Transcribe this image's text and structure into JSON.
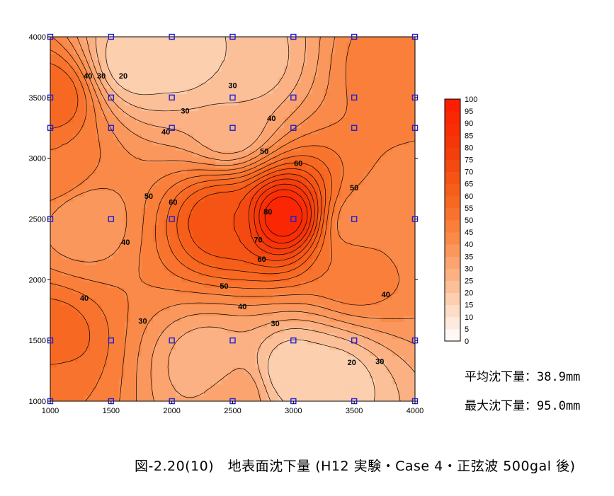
{
  "chart_data": {
    "type": "heatmap",
    "subtype": "filled-contour",
    "title": "",
    "xlabel": "",
    "ylabel": "",
    "xlim": [
      1000,
      4000
    ],
    "ylim": [
      1000,
      4000
    ],
    "x_ticks": [
      1000,
      1500,
      2000,
      2500,
      3000,
      3500,
      4000
    ],
    "y_ticks": [
      1000,
      1500,
      2000,
      2500,
      3000,
      3500,
      4000
    ],
    "x_tick_labels": [
      "1000",
      "1500",
      "2000",
      "2500",
      "3000",
      "3500",
      "4000"
    ],
    "y_tick_labels": [
      "1000",
      "1500",
      "2000",
      "2500",
      "3000",
      "3500",
      "4000"
    ],
    "contour_step": 5,
    "color_range": [
      0,
      100
    ],
    "color_low": "#ffffff",
    "color_high": "#ff1a00",
    "colorbar_labels": [
      "100",
      "95",
      "90",
      "85",
      "80",
      "75",
      "70",
      "65",
      "60",
      "55",
      "50",
      "45",
      "40",
      "35",
      "30",
      "25",
      "20",
      "15",
      "10",
      "5",
      "0"
    ],
    "contour_labels": [
      {
        "text": "40",
        "x": 1310,
        "y": 3680
      },
      {
        "text": "30",
        "x": 1420,
        "y": 3680
      },
      {
        "text": "20",
        "x": 1600,
        "y": 3680
      },
      {
        "text": "30",
        "x": 2500,
        "y": 3600
      },
      {
        "text": "30",
        "x": 2110,
        "y": 3390
      },
      {
        "text": "40",
        "x": 1950,
        "y": 3220
      },
      {
        "text": "40",
        "x": 2820,
        "y": 3330
      },
      {
        "text": "50",
        "x": 2760,
        "y": 3060
      },
      {
        "text": "60",
        "x": 3040,
        "y": 2960
      },
      {
        "text": "50",
        "x": 1810,
        "y": 2690
      },
      {
        "text": "60",
        "x": 2010,
        "y": 2640
      },
      {
        "text": "50",
        "x": 3500,
        "y": 2760
      },
      {
        "text": "80",
        "x": 2790,
        "y": 2560
      },
      {
        "text": "70",
        "x": 2710,
        "y": 2330
      },
      {
        "text": "40",
        "x": 1620,
        "y": 2310
      },
      {
        "text": "60",
        "x": 2740,
        "y": 2170
      },
      {
        "text": "50",
        "x": 2430,
        "y": 1950
      },
      {
        "text": "40",
        "x": 1280,
        "y": 1850
      },
      {
        "text": "40",
        "x": 2580,
        "y": 1780
      },
      {
        "text": "40",
        "x": 3760,
        "y": 1880
      },
      {
        "text": "30",
        "x": 1760,
        "y": 1660
      },
      {
        "text": "30",
        "x": 2850,
        "y": 1640
      },
      {
        "text": "20",
        "x": 3480,
        "y": 1320
      },
      {
        "text": "30",
        "x": 3710,
        "y": 1330
      }
    ],
    "measurement_points": [
      [
        1000,
        4000
      ],
      [
        1500,
        4000
      ],
      [
        2000,
        4000
      ],
      [
        2500,
        4000
      ],
      [
        3000,
        4000
      ],
      [
        3500,
        4000
      ],
      [
        4000,
        4000
      ],
      [
        1000,
        3500
      ],
      [
        1500,
        3500
      ],
      [
        2000,
        3500
      ],
      [
        2500,
        3500
      ],
      [
        3000,
        3500
      ],
      [
        3500,
        3500
      ],
      [
        4000,
        3500
      ],
      [
        1000,
        3250
      ],
      [
        1500,
        3250
      ],
      [
        2000,
        3250
      ],
      [
        2500,
        3250
      ],
      [
        3000,
        3250
      ],
      [
        3500,
        3250
      ],
      [
        4000,
        3250
      ],
      [
        1000,
        2500
      ],
      [
        1500,
        2500
      ],
      [
        2000,
        2500
      ],
      [
        3000,
        2500
      ],
      [
        3500,
        2500
      ],
      [
        4000,
        2500
      ],
      [
        1000,
        1500
      ],
      [
        1500,
        1500
      ],
      [
        2000,
        1500
      ],
      [
        2500,
        1500
      ],
      [
        3000,
        1500
      ],
      [
        3500,
        1500
      ],
      [
        4000,
        1500
      ],
      [
        1000,
        1000
      ],
      [
        1500,
        1000
      ],
      [
        2000,
        1000
      ],
      [
        2500,
        1000
      ],
      [
        3000,
        1000
      ],
      [
        3500,
        1000
      ],
      [
        4000,
        1000
      ]
    ],
    "field_anomalies": [
      {
        "x": 2920,
        "y": 2520,
        "value": 95,
        "note": "peak"
      },
      {
        "x": 2400,
        "y": 2480,
        "value": 70
      },
      {
        "x": 1000,
        "y": 3500,
        "value": 60
      },
      {
        "x": 1000,
        "y": 1500,
        "value": 60
      },
      {
        "x": 1050,
        "y": 2900,
        "value": 50
      },
      {
        "x": 1050,
        "y": 1100,
        "value": 50
      },
      {
        "x": 1700,
        "y": 3800,
        "value": 15
      },
      {
        "x": 2100,
        "y": 3850,
        "value": 15
      },
      {
        "x": 2600,
        "y": 3800,
        "value": 20
      },
      {
        "x": 2480,
        "y": 3250,
        "value": 25
      },
      {
        "x": 1280,
        "y": 2500,
        "value": 35
      },
      {
        "x": 2300,
        "y": 1300,
        "value": 25
      },
      {
        "x": 3000,
        "y": 1250,
        "value": 15
      },
      {
        "x": 3300,
        "y": 1150,
        "value": 15
      },
      {
        "x": 2500,
        "y": 1050,
        "value": 35
      },
      {
        "x": 3550,
        "y": 2450,
        "value": 40
      },
      {
        "x": 4000,
        "y": 2500,
        "value": 40
      },
      {
        "x": 3850,
        "y": 3750,
        "value": 50
      },
      {
        "x": 3500,
        "y": 2100,
        "value": 50
      }
    ]
  },
  "stats": {
    "average_label": "平均沈下量：",
    "average_value": "38.9mm",
    "max_label": "最大沈下量：",
    "max_value": "95.0mm"
  },
  "caption": "図-2.20(10)　地表面沈下量 (H12 実験・Case 4・正弦波 500gal 後)"
}
